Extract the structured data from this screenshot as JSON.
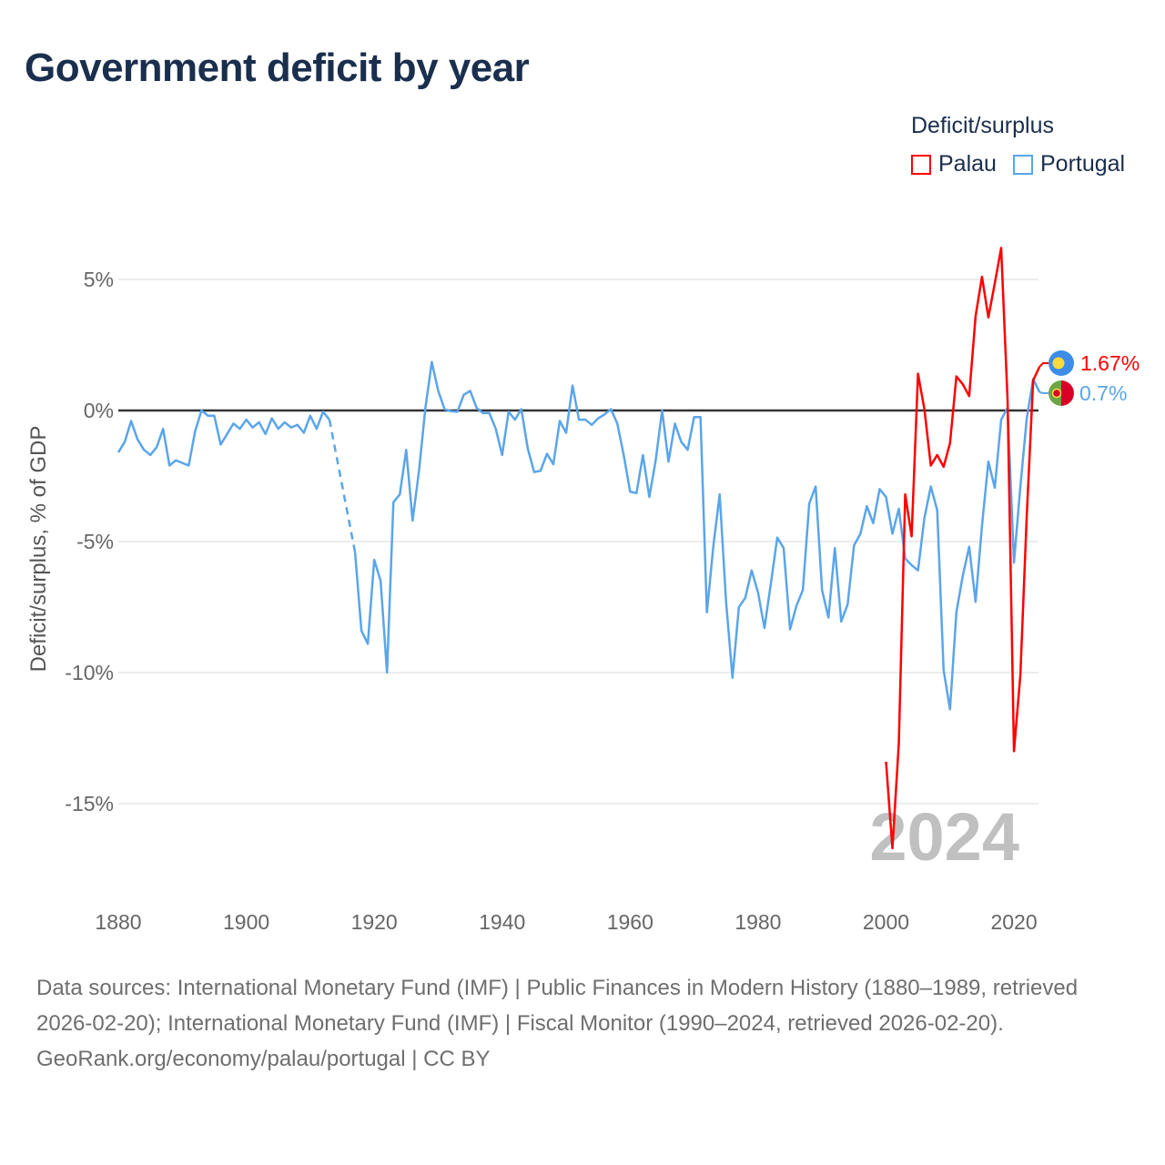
{
  "title": "Government deficit by year",
  "legend": {
    "title": "Deficit/surplus",
    "items": [
      {
        "label": "Palau",
        "color": "#ff0000"
      },
      {
        "label": "Portugal",
        "color": "#5aa5ea"
      }
    ]
  },
  "footer": {
    "sources": "Data sources: International Monetary Fund (IMF) | Public Finances in Modern History (1880–1989, retrieved 2026-02-20); International Monetary Fund (IMF) | Fiscal Monitor (1990–2024, retrieved 2026-02-20).",
    "credit": "GeoRank.org/economy/palau/portugal | CC BY"
  },
  "chart_data": {
    "type": "line",
    "title": "Government deficit by year",
    "xlabel": "",
    "ylabel": "Deficit/surplus, % of GDP",
    "xlim": [
      1880,
      2024
    ],
    "ylim": [
      -18,
      7
    ],
    "x_ticks": [
      "1880",
      "1900",
      "1920",
      "1940",
      "1960",
      "1980",
      "2000",
      "2020"
    ],
    "y_ticks": [
      {
        "value": 5,
        "label": "5%"
      },
      {
        "value": 0,
        "label": "0%"
      },
      {
        "value": -5,
        "label": "-5%"
      },
      {
        "value": -10,
        "label": "-10%"
      },
      {
        "value": -15,
        "label": "-15%"
      }
    ],
    "year_watermark": "2024",
    "series": [
      {
        "name": "Portugal",
        "color": "#5aa5ea",
        "end_label": "0.7%",
        "gap_after": 1913,
        "points": [
          [
            1880,
            -1.6
          ],
          [
            1881,
            -1.2
          ],
          [
            1882,
            -0.4
          ],
          [
            1883,
            -1.1
          ],
          [
            1884,
            -1.5
          ],
          [
            1885,
            -1.7
          ],
          [
            1886,
            -1.4
          ],
          [
            1887,
            -0.7
          ],
          [
            1888,
            -2.1
          ],
          [
            1889,
            -1.9
          ],
          [
            1890,
            -2.0
          ],
          [
            1891,
            -2.1
          ],
          [
            1892,
            -0.8
          ],
          [
            1893,
            0
          ],
          [
            1894,
            -0.2
          ],
          [
            1895,
            -0.2
          ],
          [
            1896,
            -1.3
          ],
          [
            1897,
            -0.9
          ],
          [
            1898,
            -0.5
          ],
          [
            1899,
            -0.7
          ],
          [
            1900,
            -0.35
          ],
          [
            1901,
            -0.65
          ],
          [
            1902,
            -0.45
          ],
          [
            1903,
            -0.9
          ],
          [
            1904,
            -0.3
          ],
          [
            1905,
            -0.7
          ],
          [
            1906,
            -0.45
          ],
          [
            1907,
            -0.65
          ],
          [
            1908,
            -0.55
          ],
          [
            1909,
            -0.85
          ],
          [
            1910,
            -0.2
          ],
          [
            1911,
            -0.7
          ],
          [
            1912,
            -0.05
          ],
          [
            1913,
            -0.35
          ],
          [
            1917,
            -5.4
          ],
          [
            1918,
            -8.4
          ],
          [
            1919,
            -8.9
          ],
          [
            1920,
            -5.7
          ],
          [
            1921,
            -6.5
          ],
          [
            1922,
            -10.0
          ],
          [
            1923,
            -3.5
          ],
          [
            1924,
            -3.2
          ],
          [
            1925,
            -1.5
          ],
          [
            1926,
            -4.2
          ],
          [
            1927,
            -2.3
          ],
          [
            1928,
            0.1
          ],
          [
            1929,
            1.85
          ],
          [
            1930,
            0.75
          ],
          [
            1931,
            0.05
          ],
          [
            1932,
            -0.03
          ],
          [
            1933,
            -0.05
          ],
          [
            1934,
            0.6
          ],
          [
            1935,
            0.75
          ],
          [
            1936,
            0.1
          ],
          [
            1937,
            -0.1
          ],
          [
            1938,
            -0.1
          ],
          [
            1939,
            -0.7
          ],
          [
            1940,
            -1.7
          ],
          [
            1941,
            -0.05
          ],
          [
            1942,
            -0.35
          ],
          [
            1943,
            0.05
          ],
          [
            1944,
            -1.45
          ],
          [
            1945,
            -2.35
          ],
          [
            1946,
            -2.3
          ],
          [
            1947,
            -1.65
          ],
          [
            1948,
            -2.05
          ],
          [
            1949,
            -0.4
          ],
          [
            1950,
            -0.85
          ],
          [
            1951,
            0.95
          ],
          [
            1952,
            -0.35
          ],
          [
            1953,
            -0.35
          ],
          [
            1954,
            -0.55
          ],
          [
            1955,
            -0.3
          ],
          [
            1956,
            -0.15
          ],
          [
            1957,
            0.05
          ],
          [
            1958,
            -0.5
          ],
          [
            1959,
            -1.7
          ],
          [
            1960,
            -3.1
          ],
          [
            1961,
            -3.15
          ],
          [
            1962,
            -1.7
          ],
          [
            1963,
            -3.3
          ],
          [
            1964,
            -1.9
          ],
          [
            1965,
            0
          ],
          [
            1966,
            -1.95
          ],
          [
            1967,
            -0.5
          ],
          [
            1968,
            -1.2
          ],
          [
            1969,
            -1.5
          ],
          [
            1970,
            -0.25
          ],
          [
            1971,
            -0.25
          ],
          [
            1972,
            -7.7
          ],
          [
            1973,
            -5.2
          ],
          [
            1974,
            -3.2
          ],
          [
            1975,
            -7.3
          ],
          [
            1976,
            -10.2
          ],
          [
            1977,
            -7.5
          ],
          [
            1978,
            -7.15
          ],
          [
            1979,
            -6.1
          ],
          [
            1980,
            -6.95
          ],
          [
            1981,
            -8.3
          ],
          [
            1982,
            -6.6
          ],
          [
            1983,
            -4.85
          ],
          [
            1984,
            -5.25
          ],
          [
            1985,
            -8.35
          ],
          [
            1986,
            -7.45
          ],
          [
            1987,
            -6.85
          ],
          [
            1988,
            -3.55
          ],
          [
            1989,
            -2.9
          ],
          [
            1990,
            -6.85
          ],
          [
            1991,
            -7.9
          ],
          [
            1992,
            -5.25
          ],
          [
            1993,
            -8.05
          ],
          [
            1994,
            -7.4
          ],
          [
            1995,
            -5.15
          ],
          [
            1996,
            -4.7
          ],
          [
            1997,
            -3.65
          ],
          [
            1998,
            -4.3
          ],
          [
            1999,
            -3.0
          ],
          [
            2000,
            -3.3
          ],
          [
            2001,
            -4.7
          ],
          [
            2002,
            -3.75
          ],
          [
            2003,
            -5.65
          ],
          [
            2004,
            -5.9
          ],
          [
            2005,
            -6.1
          ],
          [
            2006,
            -4.1
          ],
          [
            2007,
            -2.9
          ],
          [
            2008,
            -3.8
          ],
          [
            2009,
            -9.9
          ],
          [
            2010,
            -11.4
          ],
          [
            2011,
            -7.7
          ],
          [
            2012,
            -6.3
          ],
          [
            2013,
            -5.2
          ],
          [
            2014,
            -7.3
          ],
          [
            2015,
            -4.4
          ],
          [
            2016,
            -1.95
          ],
          [
            2017,
            -2.95
          ],
          [
            2018,
            -0.35
          ],
          [
            2019,
            0.1
          ],
          [
            2020,
            -5.8
          ],
          [
            2021,
            -2.9
          ],
          [
            2022,
            -0.3
          ],
          [
            2023,
            1.2
          ],
          [
            2024,
            0.7
          ]
        ]
      },
      {
        "name": "Palau",
        "color": "#ff0000",
        "end_label": "1.67%",
        "points": [
          [
            2000,
            -13.4
          ],
          [
            2001,
            -16.7
          ],
          [
            2002,
            -12.7
          ],
          [
            2003,
            -3.2
          ],
          [
            2004,
            -4.8
          ],
          [
            2005,
            1.4
          ],
          [
            2006,
            0.05
          ],
          [
            2007,
            -2.1
          ],
          [
            2008,
            -1.7
          ],
          [
            2009,
            -2.15
          ],
          [
            2010,
            -1.25
          ],
          [
            2011,
            1.3
          ],
          [
            2012,
            1.0
          ],
          [
            2013,
            0.55
          ],
          [
            2014,
            3.6
          ],
          [
            2015,
            5.1
          ],
          [
            2016,
            3.55
          ],
          [
            2017,
            4.85
          ],
          [
            2018,
            6.2
          ],
          [
            2019,
            0.4
          ],
          [
            2020,
            -13.0
          ],
          [
            2021,
            -10.1
          ],
          [
            2022,
            -4.0
          ],
          [
            2023,
            1.15
          ],
          [
            2024,
            1.67
          ]
        ]
      }
    ]
  }
}
